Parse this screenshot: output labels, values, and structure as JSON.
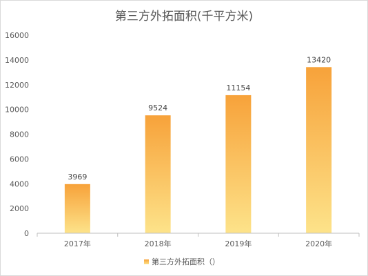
{
  "chart_data": {
    "type": "bar",
    "title": "第三方外拓面积(千平方米)",
    "categories": [
      "2017年",
      "2018年",
      "2019年",
      "2020年"
    ],
    "series": [
      {
        "name": "第三方外拓面积（）",
        "values": [
          3969,
          9524,
          11154,
          13420
        ]
      }
    ],
    "data_labels": [
      "3969",
      "9524",
      "11154",
      "13420"
    ],
    "ylim": [
      0,
      16000
    ],
    "yticks": [
      0,
      2000,
      4000,
      6000,
      8000,
      10000,
      12000,
      14000,
      16000
    ],
    "ytick_labels": [
      "0",
      "2000",
      "4000",
      "6000",
      "8000",
      "10000",
      "12000",
      "14000",
      "16000"
    ],
    "grid": false,
    "legend_position": "bottom",
    "colors": {
      "bar_top": "#f7a23a",
      "bar_bottom": "#fde38a",
      "axis": "#bfbfbf",
      "text": "#595959"
    }
  }
}
